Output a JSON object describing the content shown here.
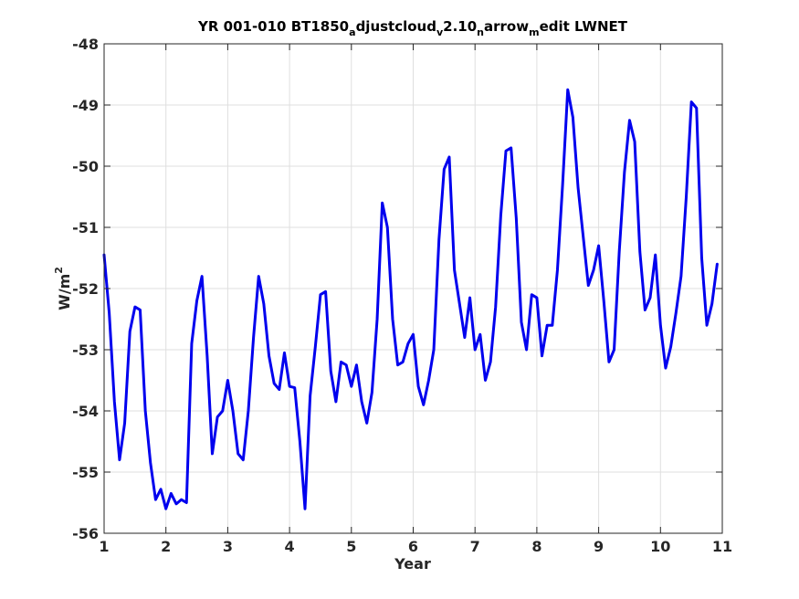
{
  "chart_data": {
    "type": "line",
    "title": {
      "parts": [
        {
          "text": "YR 001-010 BT1850",
          "sub": false
        },
        {
          "text": "a",
          "sub": true
        },
        {
          "text": "djustcloud",
          "sub": false
        },
        {
          "text": "v",
          "sub": true
        },
        {
          "text": "2.10",
          "sub": false
        },
        {
          "text": "n",
          "sub": true
        },
        {
          "text": "arrow",
          "sub": false
        },
        {
          "text": "m",
          "sub": true
        },
        {
          "text": "edit LWNET",
          "sub": false
        }
      ]
    },
    "xlabel": "Year",
    "ylabel": {
      "base": "W/m",
      "sup": "2"
    },
    "xlim": [
      1,
      11
    ],
    "ylim": [
      -56,
      -48
    ],
    "xticks": [
      1,
      2,
      3,
      4,
      5,
      6,
      7,
      8,
      9,
      10,
      11
    ],
    "yticks": [
      -56,
      -55,
      -54,
      -53,
      -52,
      -51,
      -50,
      -49,
      -48
    ],
    "grid": true,
    "line_color": "#0000ee",
    "series": [
      {
        "x": [
          1.0,
          1.083,
          1.167,
          1.25,
          1.333,
          1.417,
          1.5,
          1.583,
          1.667,
          1.75,
          1.833,
          1.917,
          2.0,
          2.083,
          2.167,
          2.25,
          2.333,
          2.417,
          2.5,
          2.583,
          2.667,
          2.75,
          2.833,
          2.917,
          3.0,
          3.083,
          3.167,
          3.25,
          3.333,
          3.417,
          3.5,
          3.583,
          3.667,
          3.75,
          3.833,
          3.917,
          4.0,
          4.083,
          4.167,
          4.25,
          4.333,
          4.417,
          4.5,
          4.583,
          4.667,
          4.75,
          4.833,
          4.917,
          5.0,
          5.083,
          5.167,
          5.25,
          5.333,
          5.417,
          5.5,
          5.583,
          5.667,
          5.75,
          5.833,
          5.917,
          6.0,
          6.083,
          6.167,
          6.25,
          6.333,
          6.417,
          6.5,
          6.583,
          6.667,
          6.75,
          6.833,
          6.917,
          7.0,
          7.083,
          7.167,
          7.25,
          7.333,
          7.417,
          7.5,
          7.583,
          7.667,
          7.75,
          7.833,
          7.917,
          8.0,
          8.083,
          8.167,
          8.25,
          8.333,
          8.417,
          8.5,
          8.583,
          8.667,
          8.75,
          8.833,
          8.917,
          9.0,
          9.083,
          9.167,
          9.25,
          9.333,
          9.417,
          9.5,
          9.583,
          9.667,
          9.75,
          9.833,
          9.917,
          10.0,
          10.083,
          10.167,
          10.25,
          10.333,
          10.417,
          10.5,
          10.583,
          10.667,
          10.75,
          10.833,
          10.917
        ],
        "y": [
          -51.45,
          -52.4,
          -53.85,
          -54.8,
          -54.2,
          -52.7,
          -52.3,
          -52.35,
          -54.0,
          -54.85,
          -55.45,
          -55.28,
          -55.6,
          -55.35,
          -55.52,
          -55.45,
          -55.5,
          -52.9,
          -52.2,
          -51.8,
          -53.1,
          -54.7,
          -54.1,
          -54.0,
          -53.5,
          -54.0,
          -54.7,
          -54.8,
          -54.0,
          -52.8,
          -51.8,
          -52.25,
          -53.1,
          -53.55,
          -53.65,
          -53.05,
          -53.6,
          -53.62,
          -54.5,
          -55.6,
          -53.75,
          -52.95,
          -52.1,
          -52.05,
          -53.35,
          -53.85,
          -53.2,
          -53.25,
          -53.6,
          -53.25,
          -53.85,
          -54.2,
          -53.7,
          -52.5,
          -50.6,
          -51.0,
          -52.5,
          -53.25,
          -53.2,
          -52.9,
          -52.75,
          -53.6,
          -53.9,
          -53.5,
          -53.0,
          -51.2,
          -50.05,
          -49.85,
          -51.7,
          -52.25,
          -52.8,
          -52.15,
          -53.0,
          -52.75,
          -53.5,
          -53.2,
          -52.3,
          -50.8,
          -49.75,
          -49.7,
          -50.85,
          -52.55,
          -53.0,
          -52.1,
          -52.15,
          -53.1,
          -52.6,
          -52.6,
          -51.7,
          -50.3,
          -48.75,
          -49.2,
          -50.35,
          -51.15,
          -51.95,
          -51.7,
          -51.3,
          -52.2,
          -53.2,
          -53.0,
          -51.4,
          -50.1,
          -49.25,
          -49.6,
          -51.4,
          -52.35,
          -52.15,
          -51.45,
          -52.6,
          -53.3,
          -52.95,
          -52.4,
          -51.8,
          -50.5,
          -48.95,
          -49.05,
          -51.5,
          -52.6,
          -52.25,
          -51.6
        ]
      }
    ]
  }
}
